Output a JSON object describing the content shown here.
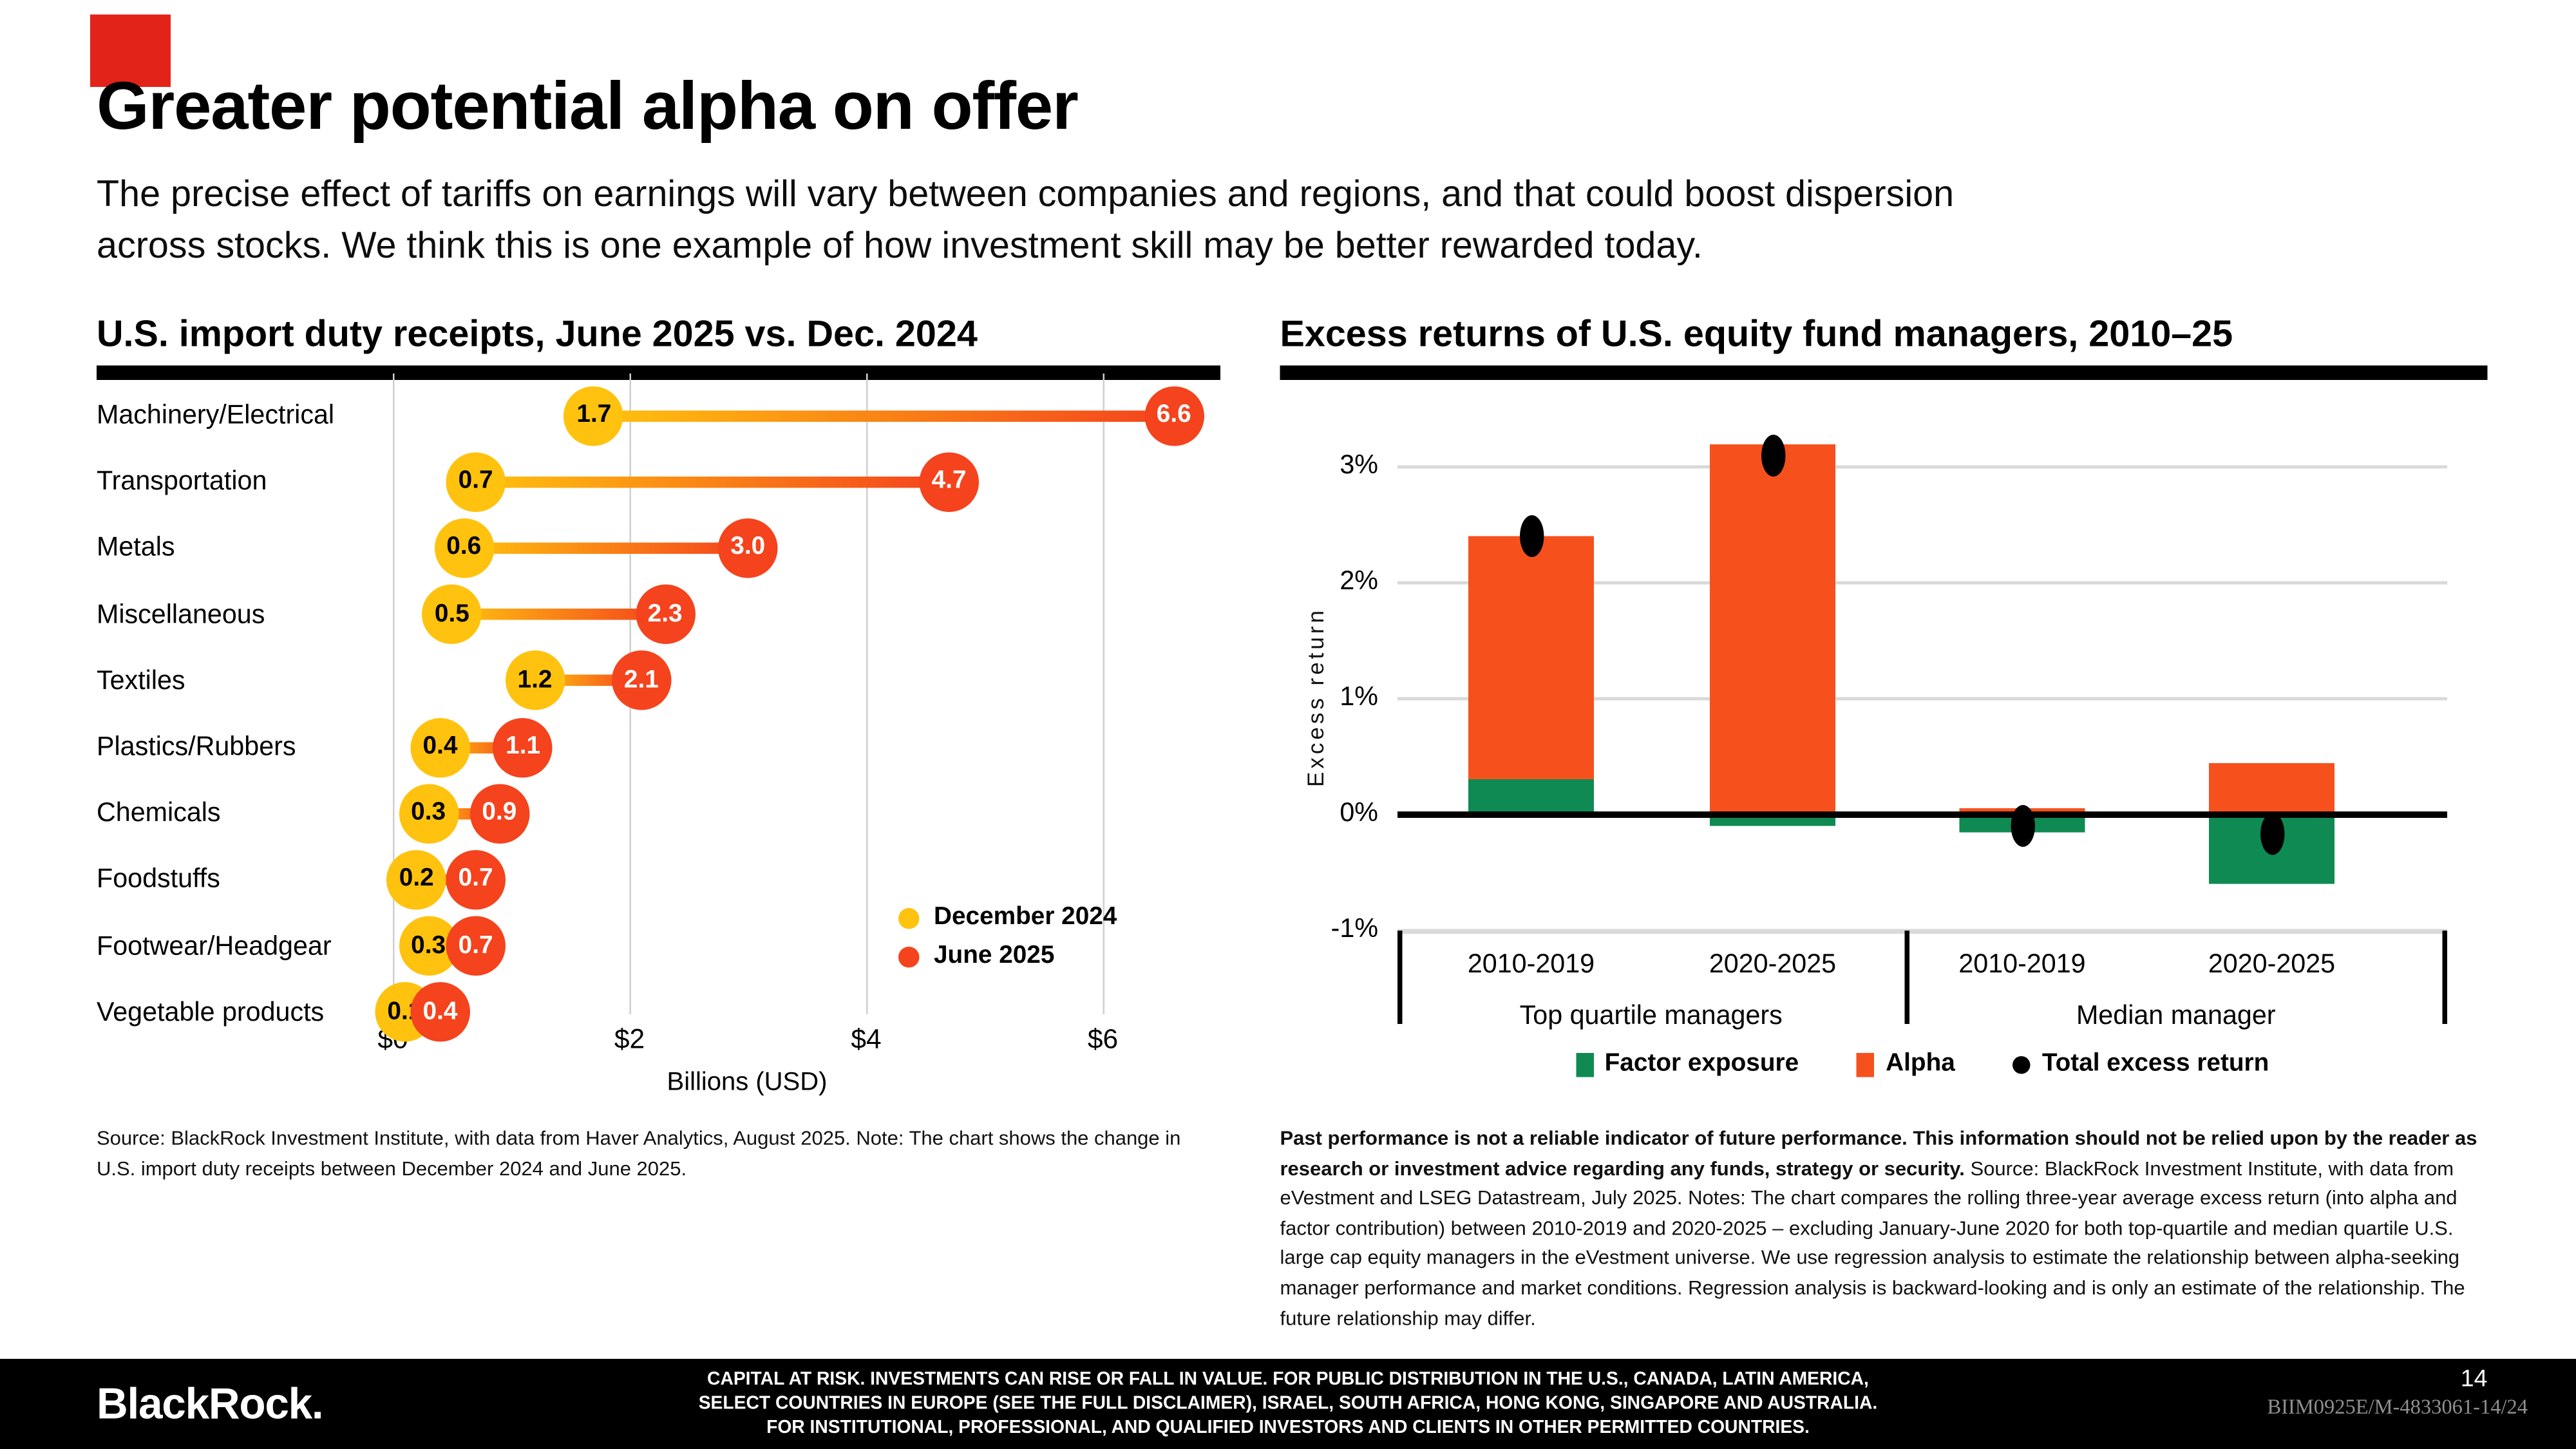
{
  "slide": {
    "title": "Greater potential alpha on offer",
    "subtitle_lines": [
      "The precise effect of tariffs on earnings will vary between companies and regions, and that could boost dispersion",
      "across stocks. We think this is one example of how investment skill may be better rewarded today."
    ]
  },
  "chart_data": [
    {
      "type": "dumbbell",
      "title": "U.S. import duty receipts, June 2025 vs. Dec. 2024",
      "xlabel": "Billions (USD)",
      "xlim": [
        0,
        7
      ],
      "x_ticks": [
        {
          "value": 0,
          "label": "$0"
        },
        {
          "value": 2,
          "label": "$2"
        },
        {
          "value": 4,
          "label": "$4"
        },
        {
          "value": 6,
          "label": "$6"
        }
      ],
      "categories": [
        "Machinery/Electrical",
        "Transportation",
        "Metals",
        "Miscellaneous",
        "Textiles",
        "Plastics/Rubbers",
        "Chemicals",
        "Foodstuffs",
        "Footwear/Headgear",
        "Vegetable products"
      ],
      "series": [
        {
          "name": "December 2024",
          "color": "#ffc20e",
          "values": [
            1.7,
            0.7,
            0.6,
            0.5,
            1.2,
            0.4,
            0.3,
            0.2,
            0.3,
            0.1
          ]
        },
        {
          "name": "June 2025",
          "color": "#f4431d",
          "values": [
            6.6,
            4.7,
            3.0,
            2.3,
            2.1,
            1.1,
            0.9,
            0.7,
            0.7,
            0.4
          ]
        }
      ],
      "legend_position": "inside bottom right",
      "grid": "vertical at ticks",
      "source": "Source: BlackRock Investment Institute, with data from Haver Analytics, August 2025. Note: The chart shows the change in U.S. import duty receipts between December 2024 and June 2025."
    },
    {
      "type": "bar",
      "title": "Excess returns of U.S. equity fund managers, 2010–25",
      "ylabel": "Excess return",
      "ylim": [
        -1,
        3.5
      ],
      "y_ticks": [
        {
          "value": 3,
          "label": "3%"
        },
        {
          "value": 2,
          "label": "2%"
        },
        {
          "value": 1,
          "label": "1%"
        },
        {
          "value": 0,
          "label": "0%"
        },
        {
          "value": -1,
          "label": "-1%"
        }
      ],
      "categories": [
        "2010-2019",
        "2020-2025",
        "2010-2019",
        "2020-2025"
      ],
      "group_labels": [
        "Top quartile managers",
        "Median manager"
      ],
      "series": [
        {
          "name": "Factor exposure",
          "marker": "square",
          "color": "#0f8a52",
          "values": [
            0.3,
            -0.1,
            -0.15,
            -0.6
          ]
        },
        {
          "name": "Alpha",
          "marker": "square",
          "color": "#f6511d",
          "values": [
            2.1,
            3.2,
            0.05,
            0.45
          ]
        },
        {
          "name": "Total excess return",
          "marker": "dot",
          "color": "#000000",
          "values": [
            2.4,
            3.1,
            -0.1,
            -0.17
          ]
        }
      ],
      "legend_position": "bottom",
      "grid": "horizontal at ticks, bold zero line",
      "disclaimer_bold": "Past performance is not a reliable indicator of future performance. This information should not be relied upon by the reader as research or investment advice regarding any funds, strategy or security.",
      "disclaimer": " Source: BlackRock Investment Institute, with data from eVestment and LSEG Datastream, July 2025. Notes: The chart compares the rolling three-year average excess return (into alpha and factor contribution) between 2010-2019 and 2020-2025 – excluding January-June 2020 for both top-quartile and median quartile U.S. large cap equity managers in the eVestment universe. We use regression analysis to estimate the relationship between alpha-seeking manager performance and market conditions. Regression analysis is backward-looking and is only an estimate of the relationship. The future relationship may differ."
    }
  ],
  "footer": {
    "logo": "BlackRock.",
    "lines": [
      "CAPITAL AT RISK. INVESTMENTS CAN RISE OR FALL IN VALUE. FOR PUBLIC DISTRIBUTION IN THE U.S., CANADA, LATIN AMERICA,",
      "SELECT COUNTRIES IN EUROPE (SEE THE FULL DISCLAIMER), ISRAEL, SOUTH AFRICA, HONG KONG, SINGAPORE AND AUSTRALIA.",
      "FOR INSTITUTIONAL, PROFESSIONAL, AND QUALIFIED INVESTORS AND CLIENTS IN OTHER PERMITTED COUNTRIES."
    ],
    "page_number": "14",
    "document_id": "BIIM0925E/M-4833061-14/24"
  },
  "colors": {
    "corner_mark": "#e2231a",
    "december_2024": "#ffc20e",
    "june_2025": "#f4431d",
    "factor_exposure": "#0f8a52",
    "alpha": "#f6511d",
    "total_excess_return": "#000000",
    "gridline": "#d9d9d9",
    "footer_background": "#000000"
  }
}
